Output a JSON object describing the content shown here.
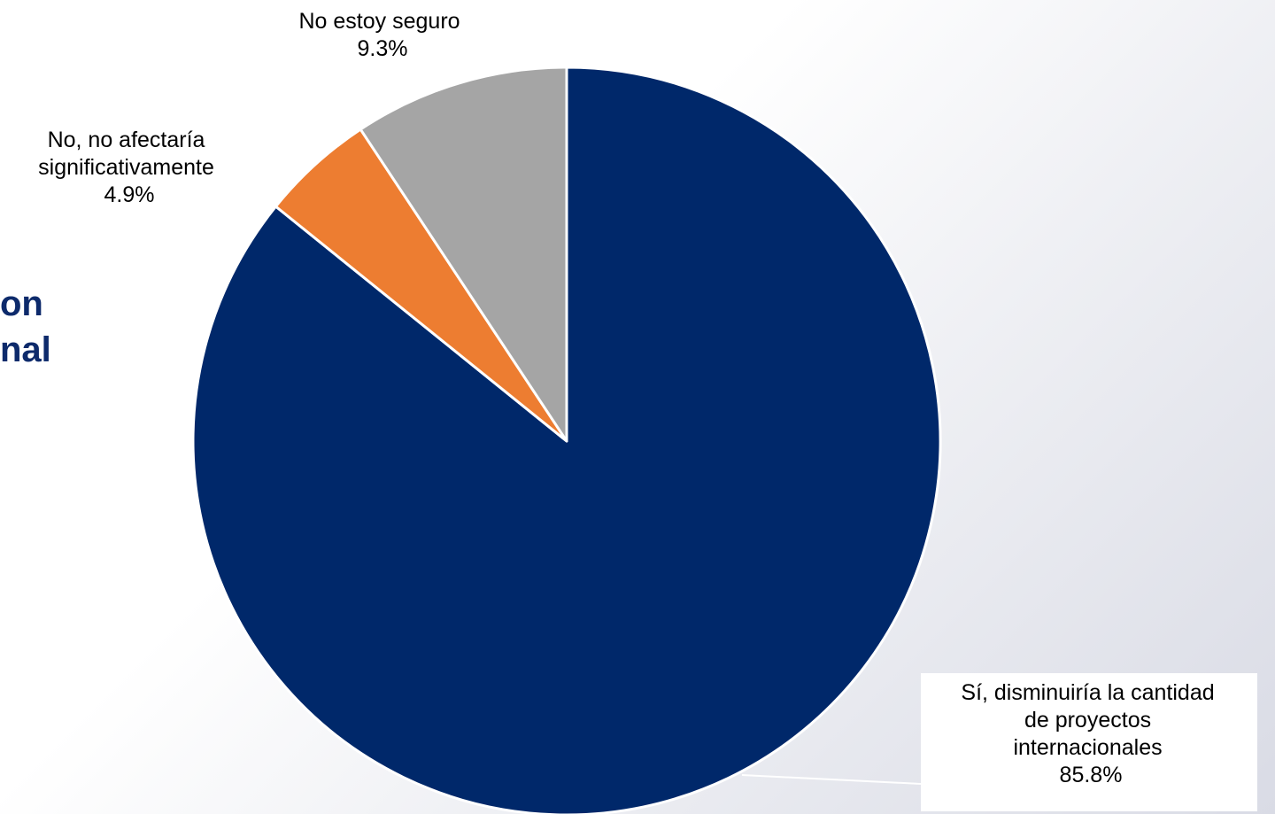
{
  "slide": {
    "title_fragments": [
      "on",
      "nal"
    ]
  },
  "chart_data": {
    "type": "pie",
    "start_angle_deg": 0,
    "direction": "clockwise",
    "slices": [
      {
        "label_lines": [
          "Sí, disminuiría la cantidad",
          "de proyectos",
          "internacionales"
        ],
        "value": 85.8,
        "value_label": "85.8%",
        "color": "#00286a"
      },
      {
        "label_lines": [
          "No, no afectaría",
          "significativamente"
        ],
        "value": 4.9,
        "value_label": "4.9%",
        "color": "#ed7d31"
      },
      {
        "label_lines": [
          "No estoy seguro"
        ],
        "value": 9.3,
        "value_label": "9.3%",
        "color": "#a5a5a5"
      }
    ]
  }
}
